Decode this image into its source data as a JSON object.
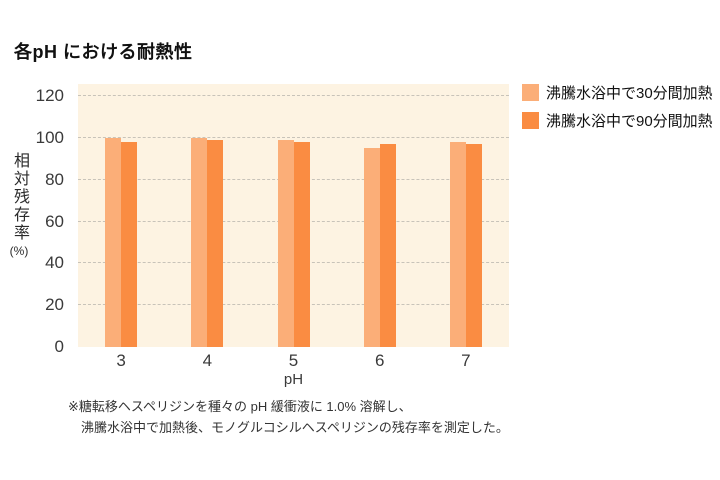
{
  "title": "各pH における耐熱性",
  "chart_data": {
    "type": "bar",
    "categories": [
      "3",
      "4",
      "5",
      "6",
      "7"
    ],
    "series": [
      {
        "name": "沸騰水浴中で30分間加熱",
        "color": "#FBAE78",
        "values": [
          100,
          100,
          99,
          95,
          98
        ]
      },
      {
        "name": "沸騰水浴中で90分間加熱",
        "color": "#FA8C42",
        "values": [
          98,
          99,
          98,
          97,
          97
        ]
      }
    ],
    "xlabel": "pH",
    "ylabel": "相対残存率",
    "ylabel_unit": "(%)",
    "ylim": [
      0,
      120
    ],
    "yticks": [
      0,
      20,
      40,
      60,
      80,
      100,
      120
    ],
    "grid": "horizontal dashed",
    "legend_position": "top-right",
    "plot_bg_color": "#FDF3E2",
    "gridline_color": "#C8C3B9"
  },
  "footnote": {
    "line1": "※糖転移ヘスペリジンを種々の pH 緩衝液に 1.0% 溶解し、",
    "line2": "沸騰水浴中で加熱後、モノグルコシルヘスペリジンの残存率を測定した。"
  }
}
